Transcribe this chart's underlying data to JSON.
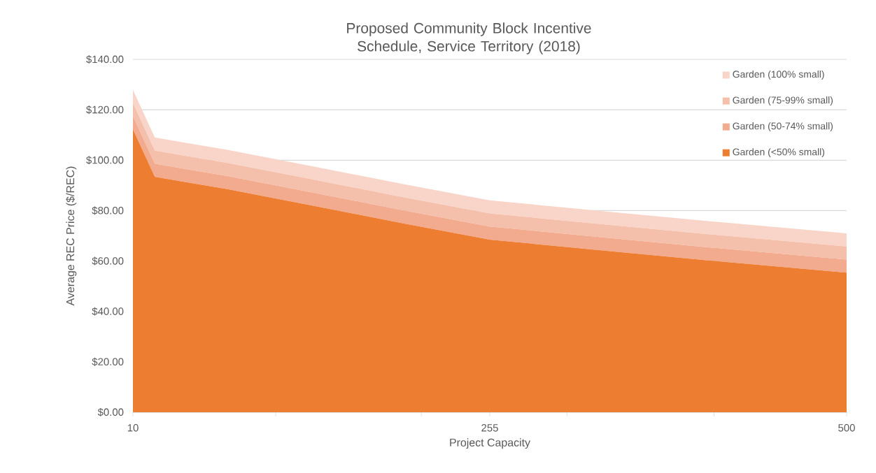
{
  "chart_data": {
    "type": "area",
    "title": "Proposed Community Block Incentive Schedule, Service Territory (2018)",
    "xlabel": "Project Capacity",
    "ylabel": "Average REC Price ($/REC)",
    "stacked": true,
    "x": [
      10,
      25,
      75,
      135,
      195,
      255,
      330,
      400,
      500
    ],
    "series": [
      {
        "name": "Garden (<50% small)",
        "color": "#ed7d31",
        "values": [
          112.3,
          93.4,
          88.5,
          81.8,
          75,
          68.5,
          64.3,
          60.5,
          55.4
        ]
      },
      {
        "name": "Garden (50-74% small)",
        "color": "#f2ab8e",
        "values": [
          5.2,
          5.2,
          5.2,
          5.2,
          5.2,
          5.2,
          5.2,
          5.2,
          5.2
        ]
      },
      {
        "name": "Garden (75-99% small)",
        "color": "#f5c0ab",
        "values": [
          5.2,
          5.2,
          5.2,
          5.2,
          5.2,
          5.2,
          5.2,
          5.2,
          5.2
        ]
      },
      {
        "name": "Garden (100% small)",
        "color": "#f8d5c8",
        "values": [
          5.2,
          5.2,
          5.2,
          5.2,
          5.2,
          5.2,
          5.2,
          5.2,
          5.2
        ]
      }
    ],
    "xlim": [
      10,
      500
    ],
    "xticks": [
      10,
      {
        "value": 108,
        "label": null
      },
      {
        "value": 208,
        "label": null
      },
      255,
      {
        "value": 308,
        "label": null
      },
      {
        "value": 409,
        "label": null
      },
      500
    ],
    "ylim": [
      0,
      140
    ],
    "yticks": [
      {
        "value": 0,
        "label": "$0.00"
      },
      {
        "value": 20,
        "label": "$20.00"
      },
      {
        "value": 40,
        "label": "$40.00"
      },
      {
        "value": 60,
        "label": "$60.00"
      },
      {
        "value": 80,
        "label": "$80.00"
      },
      {
        "value": 100,
        "label": "$100.00"
      },
      {
        "value": 120,
        "label": "$120.00"
      },
      {
        "value": 140,
        "label": "$140.00"
      }
    ],
    "grid": "y",
    "legend": "top right"
  }
}
